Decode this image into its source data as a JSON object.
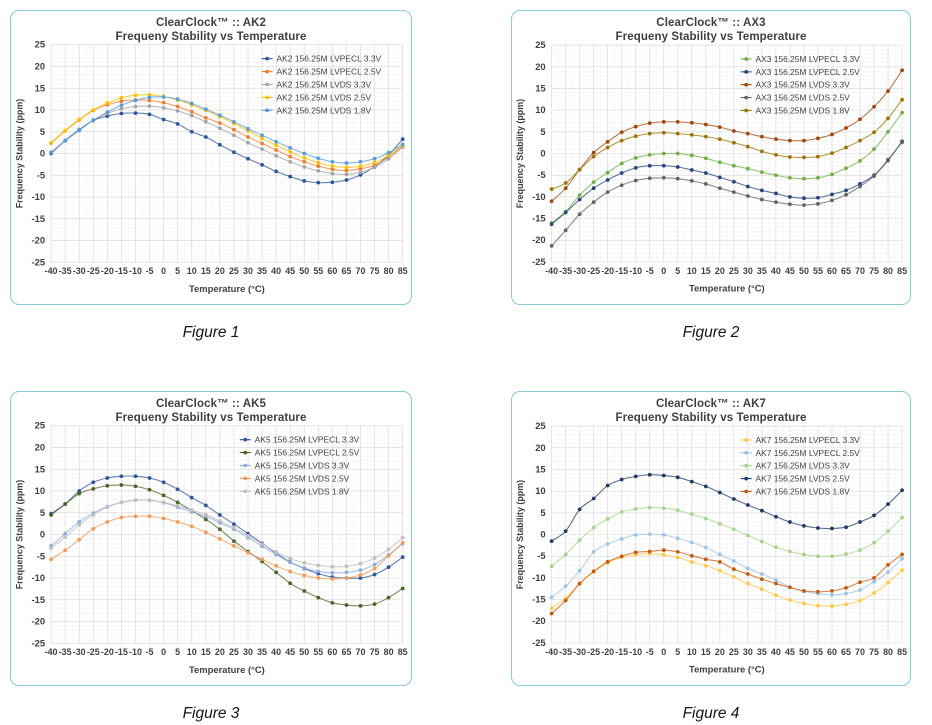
{
  "captions": [
    "Figure 1",
    "Figure 2",
    "Figure 3",
    "Figure 4"
  ],
  "style": {
    "card_border_color": "#8EC6DA",
    "grid_major_color": "#DADADA",
    "grid_minor_color": "#F1F1F1",
    "axis_text_color": "#404040",
    "title_color": "#3F3F3F",
    "legend_text_color": "#404040"
  },
  "chart_data": [
    {
      "type": "line",
      "title_line1": "ClearClock™ :: AK2",
      "title_line2": "Frequeny Stability vs Temperature",
      "xlabel": "Temperature (°C)",
      "ylabel": "Frequency Stability (ppm)",
      "ylim": [
        -25,
        25
      ],
      "ytick_step": 5,
      "grid": true,
      "legend_position": "inside-top-right",
      "x": [
        -40,
        -35,
        -30,
        -25,
        -20,
        -15,
        -10,
        -5,
        0,
        5,
        10,
        15,
        20,
        25,
        30,
        35,
        40,
        45,
        50,
        55,
        60,
        65,
        70,
        75,
        80,
        85
      ],
      "series": [
        {
          "name": "AK2 156.25M LVPECL 3.3V",
          "color": "#2F5597",
          "values": [
            0.0,
            3.0,
            5.5,
            7.6,
            8.6,
            9.2,
            9.3,
            9.0,
            7.8,
            6.8,
            5.0,
            3.8,
            2.0,
            0.3,
            -1.2,
            -2.6,
            -4.1,
            -5.3,
            -6.3,
            -6.7,
            -6.6,
            -6.1,
            -4.9,
            -3.0,
            -0.3,
            3.3
          ]
        },
        {
          "name": "AK2 156.25M LVPECL 2.5V",
          "color": "#ED7D31",
          "values": [
            2.4,
            5.2,
            7.7,
            9.9,
            11.2,
            12.0,
            12.3,
            12.2,
            11.7,
            10.8,
            9.6,
            8.2,
            7.0,
            5.5,
            3.8,
            2.3,
            0.8,
            -0.7,
            -1.9,
            -2.9,
            -3.6,
            -3.9,
            -3.5,
            -2.7,
            -0.8,
            1.7
          ]
        },
        {
          "name": "AK2 156.25M LVDS 3.3V",
          "color": "#A5A5A5",
          "values": [
            0.3,
            3.0,
            5.4,
            7.6,
            9.2,
            10.3,
            10.8,
            10.9,
            10.5,
            9.8,
            8.7,
            7.3,
            5.8,
            4.2,
            2.5,
            1.0,
            -0.5,
            -1.9,
            -3.1,
            -4.0,
            -4.6,
            -4.8,
            -4.3,
            -3.2,
            -1.2,
            1.5
          ]
        },
        {
          "name": "AK2 156.25M LVDS 2.5V",
          "color": "#FFC000",
          "values": [
            2.5,
            5.3,
            7.8,
            10.0,
            11.6,
            12.8,
            13.4,
            13.5,
            13.1,
            12.3,
            11.2,
            9.9,
            8.5,
            6.9,
            5.2,
            3.5,
            1.9,
            0.4,
            -1.0,
            -2.1,
            -2.9,
            -3.2,
            -2.9,
            -2.1,
            -0.4,
            1.9
          ]
        },
        {
          "name": "AK2 156.25M LVDS 1.8V",
          "color": "#5B9BD5",
          "values": [
            0.2,
            2.9,
            5.3,
            7.7,
            9.5,
            11.1,
            12.2,
            12.9,
            13.0,
            12.5,
            11.5,
            10.2,
            8.8,
            7.3,
            5.7,
            4.2,
            2.7,
            1.3,
            0.0,
            -1.1,
            -1.9,
            -2.2,
            -1.9,
            -1.2,
            0.2,
            2.1
          ]
        }
      ]
    },
    {
      "type": "line",
      "title_line1": "ClearClock™ :: AX3",
      "title_line2": "Frequeny Stability vs Temperature",
      "xlabel": "Temperature (°C)",
      "ylabel": "Frequency Stability (ppm)",
      "ylim": [
        -25,
        25
      ],
      "ytick_step": 5,
      "grid": true,
      "legend_position": "inside-top-right",
      "x": [
        -40,
        -35,
        -30,
        -25,
        -20,
        -15,
        -10,
        -5,
        0,
        5,
        10,
        15,
        20,
        25,
        30,
        35,
        40,
        45,
        50,
        55,
        60,
        65,
        70,
        75,
        80,
        85
      ],
      "series": [
        {
          "name": "AX3 156.25M LVPECL 3.3V",
          "color": "#70AD47",
          "values": [
            -16.0,
            -13.4,
            -9.6,
            -6.6,
            -4.4,
            -2.3,
            -1.0,
            -0.3,
            0.0,
            0.0,
            -0.4,
            -1.1,
            -2.0,
            -2.8,
            -3.5,
            -4.3,
            -5.0,
            -5.6,
            -5.8,
            -5.6,
            -4.8,
            -3.4,
            -1.7,
            1.0,
            5.0,
            9.4
          ]
        },
        {
          "name": "AX3 156.25M LVPECL 2.5V",
          "color": "#264478",
          "values": [
            -16.3,
            -13.6,
            -10.6,
            -8.0,
            -6.1,
            -4.5,
            -3.3,
            -2.8,
            -2.8,
            -3.1,
            -3.8,
            -4.5,
            -5.5,
            -6.5,
            -7.6,
            -8.5,
            -9.2,
            -10.0,
            -10.3,
            -10.2,
            -9.4,
            -8.5,
            -7.0,
            -5.0,
            -1.6,
            2.8
          ]
        },
        {
          "name": "AX3 156.25M LVDS 3.3V",
          "color": "#9E480E",
          "values": [
            -11.0,
            -8.0,
            -3.7,
            0.2,
            2.7,
            4.9,
            6.2,
            7.0,
            7.3,
            7.3,
            7.1,
            6.7,
            6.1,
            5.2,
            4.6,
            3.9,
            3.3,
            3.0,
            3.0,
            3.5,
            4.4,
            5.9,
            7.9,
            10.8,
            14.4,
            19.2
          ]
        },
        {
          "name": "AX3 156.25M LVDS 2.5V",
          "color": "#636363",
          "values": [
            -21.3,
            -17.7,
            -14.0,
            -11.2,
            -8.9,
            -7.3,
            -6.2,
            -5.7,
            -5.6,
            -5.8,
            -6.3,
            -7.0,
            -8.0,
            -8.9,
            -9.8,
            -10.6,
            -11.2,
            -11.7,
            -11.9,
            -11.6,
            -10.8,
            -9.5,
            -7.6,
            -5.2,
            -1.4,
            2.6
          ]
        },
        {
          "name": "AX3 156.25M LVDS 1.8V",
          "color": "#997300",
          "values": [
            -8.2,
            -6.8,
            -3.7,
            -0.7,
            1.4,
            3.0,
            4.0,
            4.6,
            4.8,
            4.6,
            4.3,
            3.9,
            3.3,
            2.5,
            1.6,
            0.5,
            -0.3,
            -0.8,
            -0.9,
            -0.7,
            0.1,
            1.4,
            3.0,
            4.9,
            8.1,
            12.4
          ]
        }
      ]
    },
    {
      "type": "line",
      "title_line1": "ClearClock™ :: AK5",
      "title_line2": "Frequeny Stability vs Temperature",
      "xlabel": "Temperature (°C)",
      "ylabel": "Frequency Stability (ppm)",
      "ylim": [
        -25,
        25
      ],
      "ytick_step": 5,
      "grid": true,
      "legend_position": "inside-top-right",
      "x": [
        -40,
        -35,
        -30,
        -25,
        -20,
        -15,
        -10,
        -5,
        0,
        5,
        10,
        15,
        20,
        25,
        30,
        35,
        40,
        45,
        50,
        55,
        60,
        65,
        70,
        75,
        80,
        85
      ],
      "series": [
        {
          "name": "AK5 156.25M LVPECL 3.3V",
          "color": "#2F5597",
          "values": [
            4.8,
            7.0,
            10.0,
            12.0,
            13.0,
            13.4,
            13.4,
            13.0,
            12.0,
            10.4,
            8.5,
            6.7,
            4.5,
            2.4,
            0.2,
            -2.0,
            -4.3,
            -6.3,
            -7.8,
            -9.0,
            -9.8,
            -10.0,
            -10.0,
            -9.2,
            -7.5,
            -5.2
          ]
        },
        {
          "name": "AK5 156.25M LVPECL 2.5V",
          "color": "#4F6228",
          "values": [
            4.5,
            7.0,
            9.4,
            10.5,
            11.2,
            11.4,
            11.1,
            10.3,
            9.0,
            7.4,
            5.5,
            3.5,
            1.2,
            -1.5,
            -3.9,
            -6.2,
            -8.7,
            -11.2,
            -13.0,
            -14.5,
            -15.7,
            -16.2,
            -16.4,
            -16.0,
            -14.5,
            -12.4
          ]
        },
        {
          "name": "AK5 156.25M LVDS 3.3V",
          "color": "#8FAADC",
          "values": [
            -2.6,
            0.2,
            2.9,
            4.9,
            6.4,
            7.4,
            7.9,
            7.9,
            7.3,
            6.3,
            5.2,
            4.2,
            2.7,
            1.2,
            -0.7,
            -2.7,
            -4.6,
            -6.4,
            -7.7,
            -8.5,
            -8.8,
            -8.7,
            -8.2,
            -6.9,
            -4.7,
            -2.1
          ]
        },
        {
          "name": "AK5 156.25M LVDS 2.5V",
          "color": "#F09B59",
          "values": [
            -5.7,
            -3.6,
            -1.2,
            1.3,
            2.9,
            3.9,
            4.2,
            4.2,
            3.7,
            2.9,
            1.9,
            0.5,
            -1.0,
            -2.6,
            -4.2,
            -5.7,
            -7.2,
            -8.5,
            -9.4,
            -10.0,
            -10.2,
            -10.0,
            -9.3,
            -7.8,
            -4.9,
            -1.9
          ]
        },
        {
          "name": "AK5 156.25M LVDS 1.8V",
          "color": "#BFBFBF",
          "values": [
            -3.1,
            -0.6,
            2.2,
            4.5,
            6.3,
            7.4,
            7.9,
            7.9,
            7.4,
            6.6,
            5.6,
            4.6,
            3.1,
            1.6,
            -0.3,
            -2.2,
            -4.0,
            -5.5,
            -6.5,
            -7.1,
            -7.4,
            -7.3,
            -6.7,
            -5.4,
            -3.4,
            -0.7
          ]
        }
      ]
    },
    {
      "type": "line",
      "title_line1": "ClearClock™ :: AK7",
      "title_line2": "Frequeny Stability vs Temperature",
      "xlabel": "Temperature (°C)",
      "ylabel": "Frequency Stability (ppm)",
      "ylim": [
        -25,
        25
      ],
      "ytick_step": 5,
      "grid": true,
      "legend_position": "inside-top-right",
      "x": [
        -40,
        -35,
        -30,
        -25,
        -20,
        -15,
        -10,
        -5,
        0,
        5,
        10,
        15,
        20,
        25,
        30,
        35,
        40,
        45,
        50,
        55,
        60,
        65,
        70,
        75,
        80,
        85
      ],
      "series": [
        {
          "name": "AK7 156.25M LVPECL 3.3V",
          "color": "#FFC846",
          "values": [
            -17.0,
            -14.7,
            -11.4,
            -8.6,
            -6.5,
            -5.2,
            -4.7,
            -4.4,
            -4.7,
            -5.3,
            -6.3,
            -7.2,
            -8.3,
            -9.8,
            -11.3,
            -12.6,
            -14.0,
            -15.1,
            -15.9,
            -16.4,
            -16.5,
            -16.1,
            -15.2,
            -13.5,
            -11.1,
            -8.2
          ]
        },
        {
          "name": "AK7 156.25M LVPECL 2.5V",
          "color": "#9DC3E6",
          "values": [
            -14.5,
            -11.9,
            -8.3,
            -4.0,
            -2.2,
            -1.0,
            -0.1,
            0.1,
            -0.1,
            -0.9,
            -1.8,
            -3.0,
            -4.6,
            -6.1,
            -7.8,
            -9.1,
            -10.5,
            -12.1,
            -13.1,
            -13.6,
            -13.9,
            -13.6,
            -12.8,
            -10.9,
            -8.7,
            -5.6
          ]
        },
        {
          "name": "AK7 156.25M LVDS 3.3V",
          "color": "#A9D18E",
          "values": [
            -7.3,
            -4.6,
            -1.3,
            1.6,
            3.6,
            5.2,
            5.9,
            6.2,
            6.1,
            5.6,
            4.7,
            3.7,
            2.5,
            1.2,
            -0.2,
            -1.6,
            -2.9,
            -3.9,
            -4.6,
            -5.0,
            -5.0,
            -4.5,
            -3.6,
            -1.9,
            0.8,
            3.9
          ]
        },
        {
          "name": "AK7 156.25M LVDS 2.5V",
          "color": "#203864",
          "values": [
            -1.5,
            0.8,
            5.8,
            8.3,
            11.3,
            12.7,
            13.4,
            13.8,
            13.6,
            13.2,
            12.2,
            11.1,
            9.7,
            8.2,
            6.8,
            5.5,
            4.1,
            2.9,
            2.0,
            1.5,
            1.4,
            1.7,
            2.9,
            4.4,
            7.0,
            10.2
          ]
        },
        {
          "name": "AK7 156.25M LVDS 1.8V",
          "color": "#C55A11",
          "values": [
            -18.2,
            -15.2,
            -11.3,
            -8.5,
            -6.3,
            -5.0,
            -4.1,
            -3.9,
            -3.6,
            -4.0,
            -4.9,
            -5.7,
            -6.3,
            -8.0,
            -9.1,
            -10.3,
            -11.3,
            -12.2,
            -13.0,
            -13.2,
            -13.0,
            -12.3,
            -11.0,
            -10.0,
            -7.0,
            -4.6
          ]
        }
      ]
    }
  ]
}
